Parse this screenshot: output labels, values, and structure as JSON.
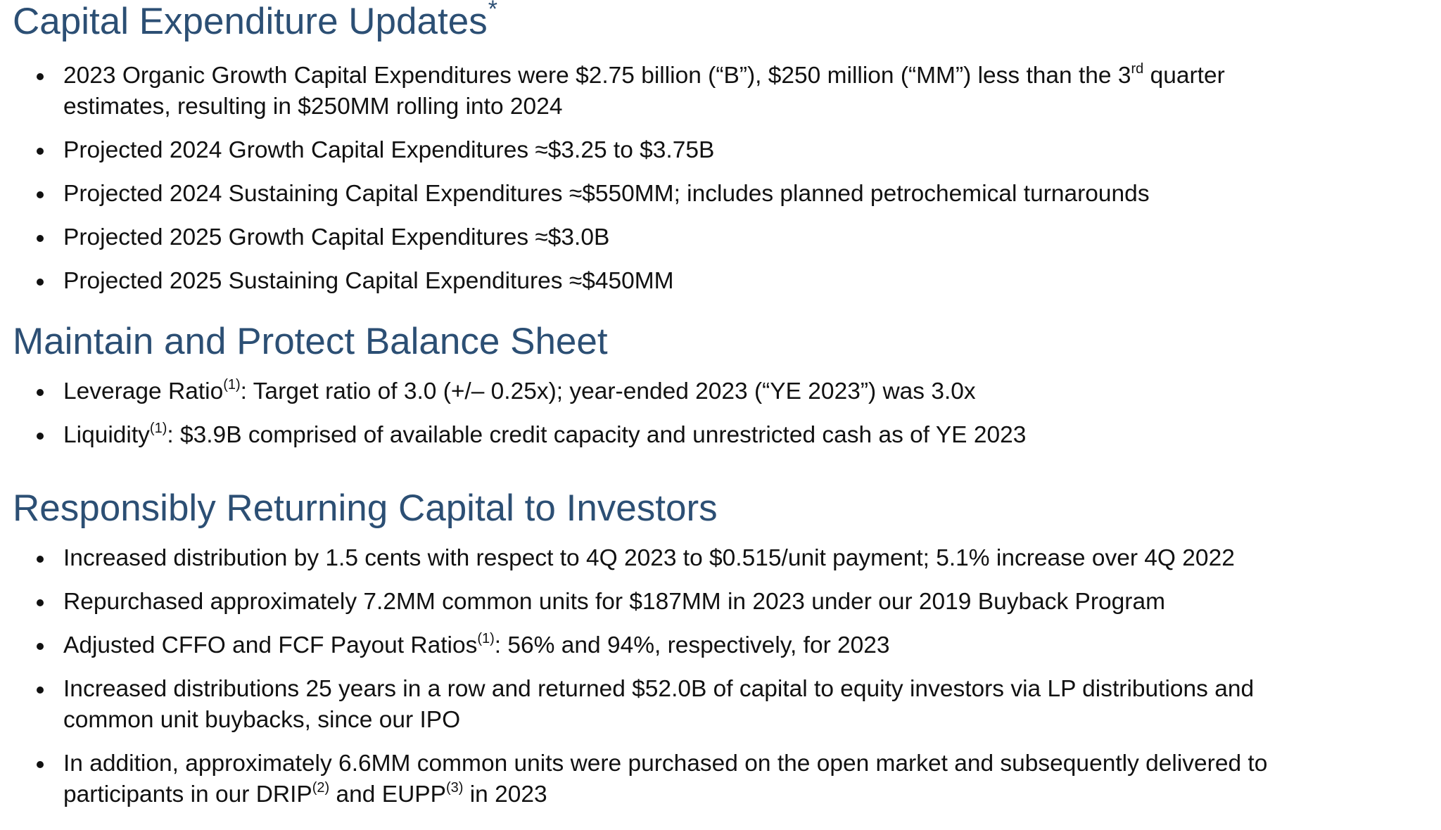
{
  "capex": {
    "heading": "Capital Expenditure Updates",
    "heading_mark": "*",
    "b1_text_a": "2023 Organic Growth Capital Expenditures were $2.75 billion (“B”), $250 million (“MM”) less than the 3",
    "b1_sup": "rd",
    "b1_text_b": " quarter",
    "b1_line2": "estimates, resulting in $250MM rolling into 2024",
    "b2": "Projected 2024 Growth Capital Expenditures ≈$3.25 to $3.75B",
    "b3": "Projected 2024 Sustaining Capital Expenditures ≈$550MM; includes planned petrochemical turnarounds",
    "b4": "Projected 2025 Growth Capital Expenditures ≈$3.0B",
    "b5": "Projected 2025 Sustaining Capital Expenditures ≈$450MM"
  },
  "balance": {
    "heading": "Maintain and Protect Balance Sheet",
    "b1_label": "Leverage Ratio",
    "b1_sup": "(1)",
    "b1_text": ":  Target ratio of 3.0 (+/– 0.25x); year-ended 2023 (“YE 2023”) was 3.0x",
    "b2_label": "Liquidity",
    "b2_sup": "(1)",
    "b2_text": ":  $3.9B comprised of available credit capacity and unrestricted cash as of YE 2023"
  },
  "returning": {
    "heading": "Responsibly Returning Capital to Investors",
    "b1": "Increased distribution by 1.5 cents with respect to 4Q 2023 to $0.515/unit payment; 5.1% increase over 4Q 2022",
    "b2": "Repurchased approximately 7.2MM common units for $187MM in 2023 under our 2019 Buyback Program",
    "b3_label": "Adjusted CFFO and FCF Payout Ratios",
    "b3_sup": "(1)",
    "b3_text": ":  56% and 94%, respectively, for 2023",
    "b4_line1": "Increased distributions 25 years in a row and returned $52.0B of capital to equity investors via LP distributions and",
    "b4_line2": "common unit buybacks, since our IPO",
    "b5_line1": "In addition, approximately 6.6MM common units were purchased on the open market and subsequently delivered to",
    "b5_line2_a": "participants in our DRIP",
    "b5_sup1": "(2)",
    "b5_line2_b": " and EUPP",
    "b5_sup2": "(3)",
    "b5_line2_c": " in 2023"
  }
}
